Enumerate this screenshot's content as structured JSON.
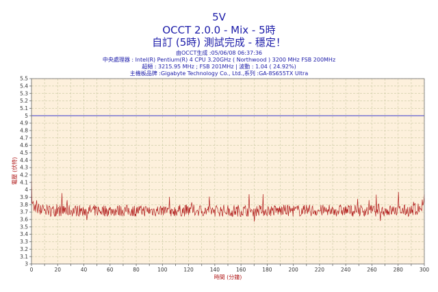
{
  "chart_data": {
    "type": "line",
    "title": "5V",
    "subtitle": "OCCT 2.0.0 - Mix - 5時",
    "status": "自訂 (5時) 測試完成 - 穩定！",
    "info_lines": [
      "由OCCT生成 :05/06/08 06:37:36",
      "中央處理器 : Intel(R) Pentium(R) 4 CPU 3.20GHz ( Northwood ) 3200 MHz FSB 200MHz",
      "超頻 : 3215.95 MHz ; FSB 201MHz | 波動 : 1.04 ( 24.92%)",
      "主機板品牌 :Gigabyte Technology Co., Ltd.,系列 :GA-8S655TX Ultra"
    ],
    "xlabel": "時間 (分鐘)",
    "ylabel": "電壓 (伏特)",
    "xlim": [
      0,
      300
    ],
    "ylim": [
      3,
      5.5
    ],
    "x_ticks": [
      0,
      10,
      20,
      30,
      40,
      50,
      60,
      70,
      80,
      90,
      100,
      110,
      120,
      130,
      140,
      150,
      160,
      170,
      180,
      190,
      200,
      210,
      220,
      230,
      240,
      250,
      260,
      270,
      280,
      290,
      300
    ],
    "x_tick_labels": [
      "0",
      "",
      "20",
      "",
      "40",
      "",
      "60",
      "",
      "80",
      "",
      "100",
      "",
      "120",
      "",
      "140",
      "",
      "160",
      "",
      "180",
      "",
      "200",
      "",
      "220",
      "",
      "240",
      "",
      "260",
      "",
      "280",
      "",
      "300"
    ],
    "y_ticks": [
      3,
      3.1,
      3.2,
      3.3,
      3.4,
      3.5,
      3.6,
      3.7,
      3.8,
      3.9,
      4,
      4.1,
      4.2,
      4.3,
      4.4,
      4.5,
      4.6,
      4.7,
      4.8,
      4.9,
      5,
      5.1,
      5.2,
      5.3,
      5.4,
      5.5
    ],
    "y_tick_labels": [
      "3",
      "3.1",
      "3.2",
      "3.3",
      "3.4",
      "3.5",
      "3.6",
      "3.7",
      "3.8",
      "3.9",
      "4",
      "4.1",
      "4.2",
      "4.3",
      "4.4",
      "4.5",
      "4.6",
      "4.7",
      "4.8",
      "4.9",
      "5",
      "5.1",
      "5.2",
      "5.3",
      "5.4",
      "5.5"
    ],
    "grid": true,
    "reference_value": 5,
    "series_mean": 3.72,
    "series_min": 3.51,
    "series_max": 4.12,
    "start_value": 4.12,
    "end_value": 3.94,
    "colors": {
      "background": "#fdf0dc",
      "grid": "#c8c8a0",
      "series": "#b01818",
      "reference": "#3c3cd0",
      "text": "#1a1aa8",
      "axis_label": "#b01818"
    }
  }
}
